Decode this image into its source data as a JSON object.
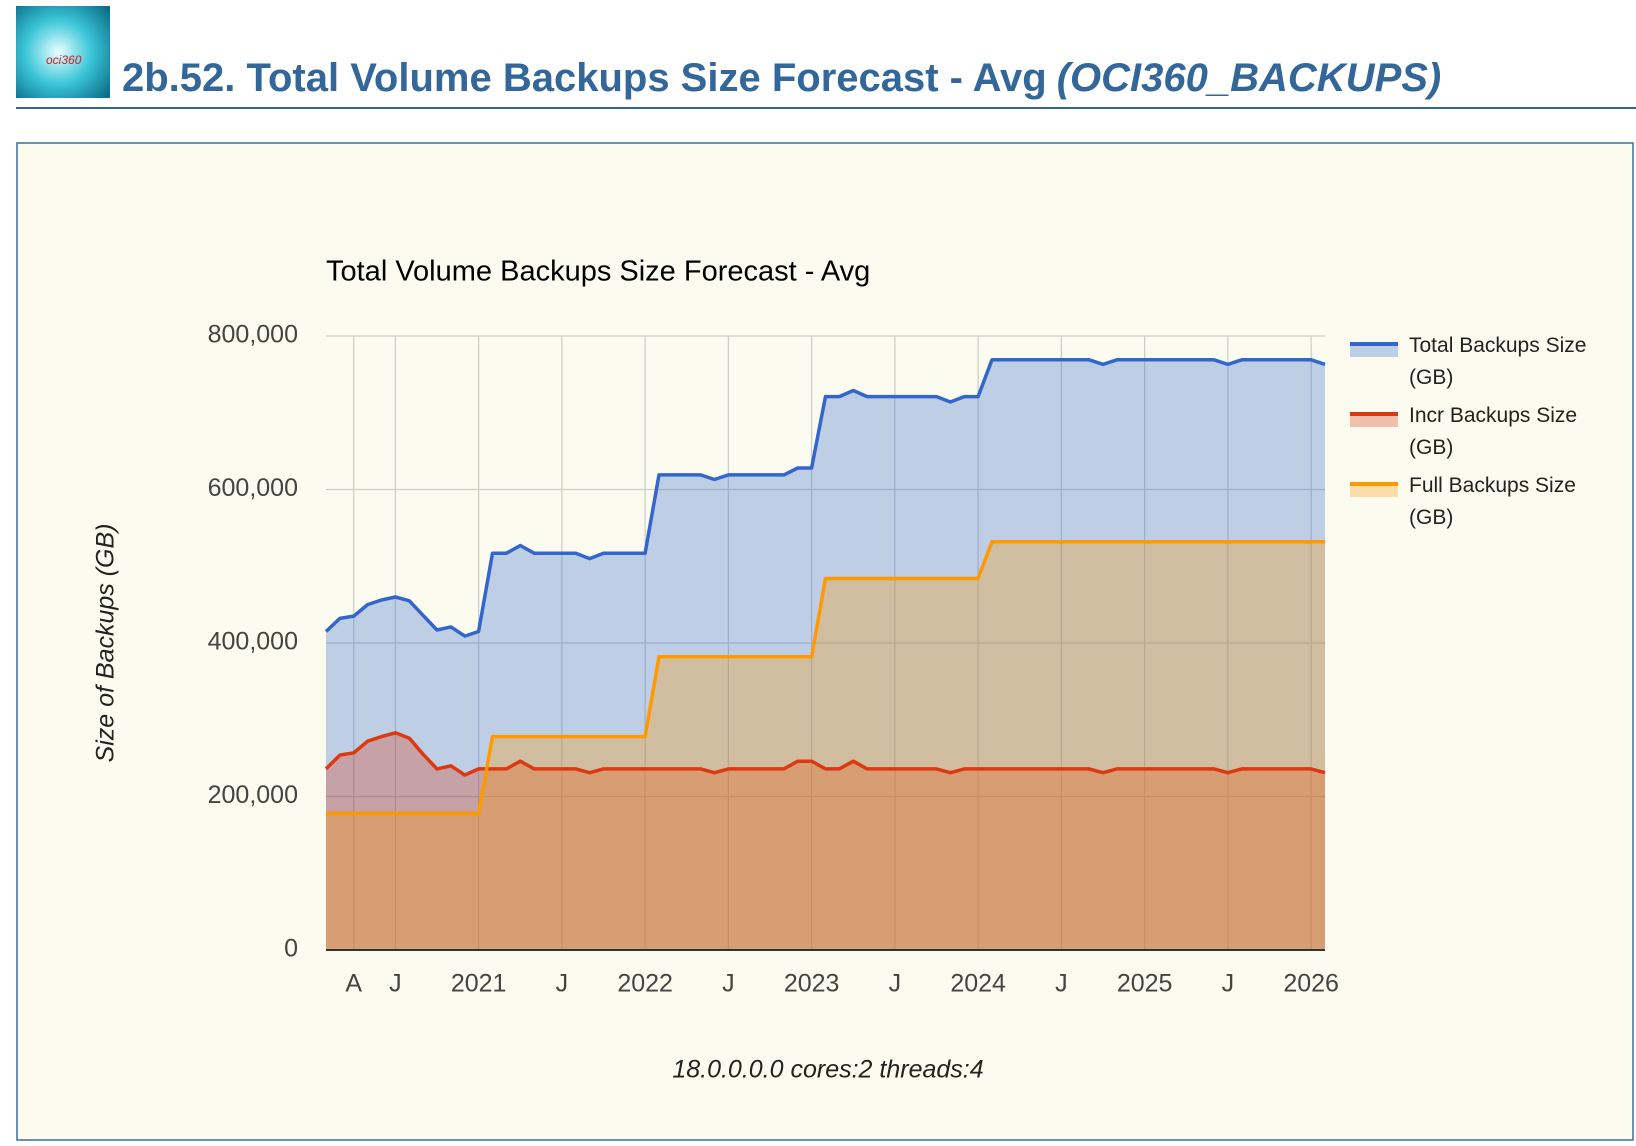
{
  "header": {
    "title": "2b.52. Total Volume Backups Size Forecast - Avg",
    "subtitle": "(OCI360_BACKUPS)",
    "logo_text": "oci360"
  },
  "chart_data": {
    "type": "area",
    "title": "Total Volume Backups Size Forecast - Avg",
    "y_label": "Size of Backups (GB)",
    "footnote": "18.0.0.0.0 cores:2 threads:4",
    "x": [
      "2020-02",
      "2020-03",
      "2020-04",
      "2020-05",
      "2020-06",
      "2020-07",
      "2020-08",
      "2020-09",
      "2020-10",
      "2020-11",
      "2020-12",
      "2021-01",
      "2021-02",
      "2021-03",
      "2021-04",
      "2021-05",
      "2021-06",
      "2021-07",
      "2021-08",
      "2021-09",
      "2021-10",
      "2021-11",
      "2021-12",
      "2022-01",
      "2022-02",
      "2022-03",
      "2022-04",
      "2022-05",
      "2022-06",
      "2022-07",
      "2022-08",
      "2022-09",
      "2022-10",
      "2022-11",
      "2022-12",
      "2023-01",
      "2023-02",
      "2023-03",
      "2023-04",
      "2023-05",
      "2023-06",
      "2023-07",
      "2023-08",
      "2023-09",
      "2023-10",
      "2023-11",
      "2023-12",
      "2024-01",
      "2024-02",
      "2024-03",
      "2024-04",
      "2024-05",
      "2024-06",
      "2024-07",
      "2024-08",
      "2024-09",
      "2024-10",
      "2024-11",
      "2024-12",
      "2025-01",
      "2025-02",
      "2025-03",
      "2025-04",
      "2025-05",
      "2025-06",
      "2025-07",
      "2025-08",
      "2025-09",
      "2025-10",
      "2025-11",
      "2025-12",
      "2026-01",
      "2026-02"
    ],
    "series": [
      {
        "name": "Total Backups Size (GB)",
        "color": "#3366cc",
        "values": [
          415000,
          432000,
          435000,
          450000,
          456000,
          460000,
          455000,
          436000,
          417000,
          421000,
          409000,
          415000,
          517000,
          517000,
          527000,
          517000,
          517000,
          517000,
          517000,
          510000,
          517000,
          517000,
          517000,
          517000,
          619000,
          619000,
          619000,
          619000,
          613000,
          619000,
          619000,
          619000,
          619000,
          619000,
          628000,
          628000,
          721000,
          721000,
          729000,
          721000,
          721000,
          721000,
          721000,
          721000,
          721000,
          714000,
          721000,
          721000,
          769000,
          769000,
          769000,
          769000,
          769000,
          769000,
          769000,
          769000,
          763000,
          769000,
          769000,
          769000,
          769000,
          769000,
          769000,
          769000,
          769000,
          763000,
          769000,
          769000,
          769000,
          769000,
          769000,
          769000,
          763000
        ]
      },
      {
        "name": "Incr Backups Size (GB)",
        "color": "#dc3912",
        "values": [
          236000,
          254000,
          257000,
          272000,
          278000,
          283000,
          276000,
          255000,
          236000,
          240000,
          228000,
          236000,
          236000,
          236000,
          246000,
          236000,
          236000,
          236000,
          236000,
          231000,
          236000,
          236000,
          236000,
          236000,
          236000,
          236000,
          236000,
          236000,
          231000,
          236000,
          236000,
          236000,
          236000,
          236000,
          246000,
          246000,
          236000,
          236000,
          246000,
          236000,
          236000,
          236000,
          236000,
          236000,
          236000,
          231000,
          236000,
          236000,
          236000,
          236000,
          236000,
          236000,
          236000,
          236000,
          236000,
          236000,
          231000,
          236000,
          236000,
          236000,
          236000,
          236000,
          236000,
          236000,
          236000,
          231000,
          236000,
          236000,
          236000,
          236000,
          236000,
          236000,
          231000
        ]
      },
      {
        "name": "Full Backups Size (GB)",
        "color": "#ff9900",
        "values": [
          178000,
          178000,
          178000,
          178000,
          178000,
          178000,
          178000,
          178000,
          178000,
          178000,
          178000,
          178000,
          278000,
          278000,
          278000,
          278000,
          278000,
          278000,
          278000,
          278000,
          278000,
          278000,
          278000,
          278000,
          382000,
          382000,
          382000,
          382000,
          382000,
          382000,
          382000,
          382000,
          382000,
          382000,
          382000,
          382000,
          484000,
          484000,
          484000,
          484000,
          484000,
          484000,
          484000,
          484000,
          484000,
          484000,
          484000,
          484000,
          532000,
          532000,
          532000,
          532000,
          532000,
          532000,
          532000,
          532000,
          532000,
          532000,
          532000,
          532000,
          532000,
          532000,
          532000,
          532000,
          532000,
          532000,
          532000,
          532000,
          532000,
          532000,
          532000,
          532000,
          532000
        ]
      }
    ],
    "xlim": [
      "2020-02",
      "2026-02"
    ],
    "xticks": [
      {
        "value": "2020-04",
        "label": "A"
      },
      {
        "value": "2020-07",
        "label": "J"
      },
      {
        "value": "2021-01",
        "label": "2021"
      },
      {
        "value": "2021-07",
        "label": "J"
      },
      {
        "value": "2022-01",
        "label": "2022"
      },
      {
        "value": "2022-07",
        "label": "J"
      },
      {
        "value": "2023-01",
        "label": "2023"
      },
      {
        "value": "2023-07",
        "label": "J"
      },
      {
        "value": "2024-01",
        "label": "2024"
      },
      {
        "value": "2024-07",
        "label": "J"
      },
      {
        "value": "2025-01",
        "label": "2025"
      },
      {
        "value": "2025-07",
        "label": "J"
      },
      {
        "value": "2026-01",
        "label": "2026"
      }
    ],
    "ylim": [
      0,
      800000
    ],
    "yticks": [
      0,
      {
        "value": 200000,
        "label": "200,000"
      },
      {
        "value": 400000,
        "label": "400,000"
      },
      {
        "value": 600000,
        "label": "600,000"
      },
      {
        "value": 800000,
        "label": "800,000"
      }
    ],
    "grid": true,
    "legend": "right",
    "area_opacity": 0.3
  }
}
